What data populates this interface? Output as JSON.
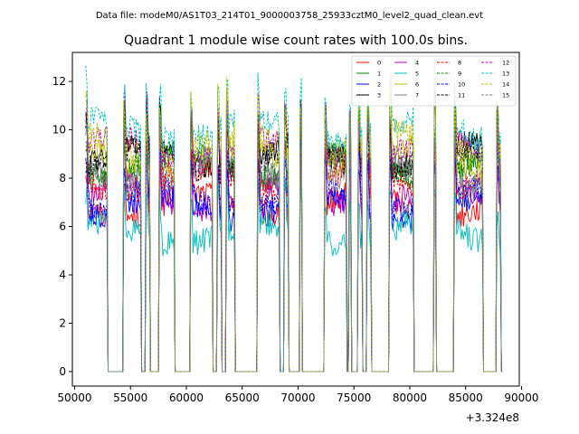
{
  "chart_data": {
    "type": "line",
    "suptitle": "Data file: modeM0/AS1T03_214T01_9000003758_25933cztM0_level2_quad_clean.evt",
    "title": "Quadrant 1 module wise count rates with 100.0s bins.",
    "xlabel": "",
    "ylabel": "",
    "x_offset_label": "+3.324e8",
    "xlim": [
      49800,
      89800
    ],
    "ylim": [
      -0.6,
      13.2
    ],
    "xticks": [
      50000,
      55000,
      60000,
      65000,
      70000,
      75000,
      80000,
      85000,
      90000
    ],
    "xtick_labels": [
      "50000",
      "55000",
      "60000",
      "65000",
      "70000",
      "75000",
      "80000",
      "85000",
      "90000"
    ],
    "yticks": [
      0,
      2,
      4,
      6,
      8,
      10,
      12
    ],
    "ytick_labels": [
      "0",
      "2",
      "4",
      "6",
      "8",
      "10",
      "12"
    ],
    "bin_seconds": 100,
    "segments": [
      [
        51000,
        53000
      ],
      [
        54400,
        56000
      ],
      [
        56400,
        56800
      ],
      [
        57600,
        59000
      ],
      [
        60400,
        62400
      ],
      [
        62800,
        63200
      ],
      [
        63600,
        64400
      ],
      [
        66400,
        68400
      ],
      [
        68800,
        69200
      ],
      [
        70200,
        70400
      ],
      [
        72400,
        74400
      ],
      [
        74600,
        74800
      ],
      [
        75400,
        75800
      ],
      [
        76200,
        76600
      ],
      [
        78200,
        80400
      ],
      [
        82200,
        82400
      ],
      [
        84000,
        86600
      ],
      [
        87800,
        88200
      ]
    ],
    "series": [
      {
        "name": "0",
        "color": "#ff0000",
        "dash": "solid",
        "base": 6.9
      },
      {
        "name": "1",
        "color": "#008000",
        "dash": "solid",
        "base": 8.5
      },
      {
        "name": "2",
        "color": "#0000ff",
        "dash": "solid",
        "base": 6.8
      },
      {
        "name": "3",
        "color": "#000000",
        "dash": "solid",
        "base": 8.9
      },
      {
        "name": "4",
        "color": "#bf00bf",
        "dash": "solid",
        "base": 7.2
      },
      {
        "name": "5",
        "color": "#00bfbf",
        "dash": "solid",
        "base": 5.7
      },
      {
        "name": "6",
        "color": "#bfbf00",
        "dash": "solid",
        "base": 8.8
      },
      {
        "name": "7",
        "color": "#808080",
        "dash": "solid",
        "base": 8.1
      },
      {
        "name": "8",
        "color": "#ff0000",
        "dash": "dashed",
        "base": 7.9
      },
      {
        "name": "9",
        "color": "#008000",
        "dash": "dashed",
        "base": 8.6
      },
      {
        "name": "10",
        "color": "#0000ff",
        "dash": "dashed",
        "base": 7.1
      },
      {
        "name": "11",
        "color": "#000000",
        "dash": "dashed",
        "base": 8.7
      },
      {
        "name": "12",
        "color": "#bf00bf",
        "dash": "dashed",
        "base": 9.2
      },
      {
        "name": "13",
        "color": "#00bfbf",
        "dash": "dashed",
        "base": 10.0
      },
      {
        "name": "14",
        "color": "#bfbf00",
        "dash": "dashed",
        "base": 9.4
      },
      {
        "name": "15",
        "color": "#808080",
        "dash": "dashed",
        "base": 8.4
      }
    ]
  }
}
